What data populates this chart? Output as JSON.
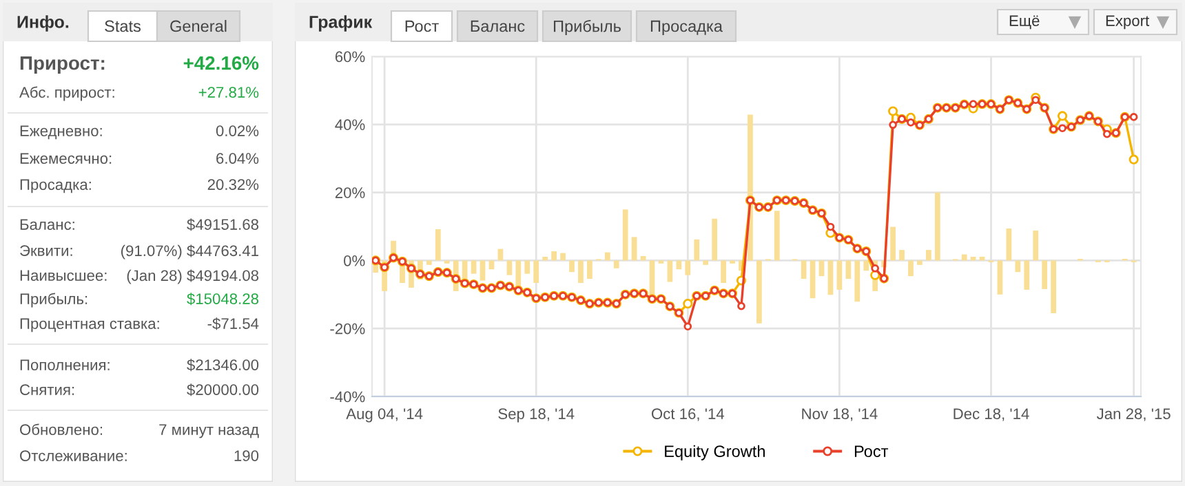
{
  "chart_data": [
    {
      "type": "other",
      "title": "Инфо.",
      "annotations": [
        "Stats",
        "General",
        "Прирост:",
        "+42.16%",
        "Абс. прирост:",
        "+27.81%",
        "Ежедневно:",
        "0.02%",
        "Ежемесячно:",
        "6.04%",
        "Просадка:",
        "20.32%",
        "Баланс:",
        "$49151.68",
        "Эквити:",
        "(91.07%) $44763.41",
        "Наивысшее:",
        "(Jan 28) $49194.08",
        "Прибыль:",
        "$15048.28",
        "Процентная ставка:",
        "-$71.54",
        "Пополнения:",
        "$21346.00",
        "Снятия:",
        "$20000.00",
        "Обновлено:",
        "7 минут назад",
        "Отслеживание:",
        "190"
      ]
    },
    {
      "type": "bar",
      "title": "График",
      "annotations": [
        "Рост",
        "Баланс",
        "Прибыль",
        "Просадка",
        "Ещё",
        "Export"
      ],
      "categories": [
        null,
        "Aug 04, '14",
        null,
        null,
        null,
        null,
        null,
        null,
        null,
        null,
        null,
        null,
        null,
        null,
        null,
        null,
        null,
        null,
        "Sep 18, '14",
        null,
        null,
        null,
        null,
        null,
        null,
        null,
        null,
        null,
        null,
        null,
        null,
        null,
        null,
        null,
        null,
        "Oct 16, '14",
        null,
        null,
        null,
        null,
        null,
        null,
        null,
        null,
        null,
        null,
        null,
        null,
        null,
        null,
        null,
        null,
        "Nov 18, '14",
        null,
        null,
        null,
        null,
        null,
        null,
        null,
        null,
        null,
        null,
        null,
        null,
        null,
        null,
        null,
        null,
        "Dec 18, '14",
        null,
        null,
        null,
        null,
        null,
        null,
        null,
        null,
        null,
        null,
        null,
        null,
        null,
        null,
        null,
        "Jan 28, '15"
      ],
      "series": [
        {
          "type": "bar",
          "color": "#f9df96",
          "values": [
            -3.6,
            -9.0,
            5.8,
            -6.6,
            -8.0,
            -5.6,
            -1.3,
            9.2,
            -0.9,
            -9.0,
            -6.3,
            -3.9,
            -5.9,
            -2.6,
            3.4,
            -4.3,
            -7.7,
            -3.9,
            -6.6,
            1.1,
            2.7,
            2.2,
            -3.4,
            -6.6,
            -5.4,
            0.4,
            2.4,
            -2.3,
            15.0,
            6.9,
            1.3,
            -11.1,
            -0.9,
            -6.3,
            -2.6,
            -4.3,
            6.2,
            -1.3,
            12.3,
            -6.6,
            -0.9,
            -3.0,
            42.9,
            -18.5,
            0.4,
            14.6,
            0,
            0.4,
            -5.4,
            -11.1,
            -4.6,
            -10.1,
            -8.6,
            -5.4,
            -12.1,
            -3.0,
            -9.0,
            -2.0,
            9.9,
            3.1,
            -4.6,
            -1.3,
            3.1,
            20.0,
            0,
            0.4,
            1.8,
            1.1,
            1.1,
            -0.5,
            -10.0,
            9.4,
            -3.4,
            -8.6,
            8.8,
            -8.4,
            -15.5,
            0,
            0,
            0.5,
            0,
            -0.5,
            -0.5,
            0,
            0.5,
            -0.5
          ]
        },
        {
          "type": "line",
          "name": "Equity Growth",
          "color": "#f5b400",
          "values": [
            0,
            -2.0,
            0.8,
            -0.3,
            -2.3,
            -4.0,
            -4.6,
            -3.4,
            -3.6,
            -5.4,
            -6.7,
            -7.0,
            -8.1,
            -8.1,
            -7.3,
            -7.7,
            -8.8,
            -9.4,
            -11.1,
            -10.8,
            -10.4,
            -10.4,
            -10.8,
            -11.7,
            -12.7,
            -12.4,
            -12.4,
            -12.7,
            -10.0,
            -9.7,
            -9.7,
            -11.3,
            -11.3,
            -13.5,
            -15.4,
            -12.7,
            -10.4,
            -10.4,
            -8.8,
            -9.7,
            -9.7,
            -5.9,
            17.7,
            15.7,
            15.7,
            17.7,
            17.7,
            17.5,
            16.9,
            14.8,
            13.9,
            8.1,
            6.7,
            6.1,
            3.5,
            2.7,
            -4.3,
            -5.3,
            43.9,
            41.6,
            42.0,
            39.8,
            41.6,
            44.9,
            44.9,
            44.9,
            45.9,
            44.7,
            46.0,
            46.0,
            44.5,
            47.2,
            46.3,
            44.5,
            47.9,
            44.9,
            38.6,
            42.5,
            39.3,
            41.3,
            42.5,
            40.9,
            38.6,
            37.5,
            42.2,
            29.7
          ]
        },
        {
          "type": "line",
          "name": "Рост",
          "color": "#e8402a",
          "values": [
            0,
            -2.0,
            0.8,
            -0.3,
            -2.3,
            -4.0,
            -4.6,
            -3.4,
            -3.6,
            -5.4,
            -6.7,
            -7.0,
            -8.1,
            -8.1,
            -7.3,
            -7.7,
            -8.8,
            -9.4,
            -11.1,
            -10.8,
            -10.4,
            -10.4,
            -10.8,
            -11.7,
            -12.7,
            -12.4,
            -12.4,
            -12.7,
            -10.0,
            -9.7,
            -9.7,
            -11.3,
            -11.3,
            -13.5,
            -15.4,
            -19.4,
            -10.4,
            -10.4,
            -8.8,
            -9.7,
            -9.7,
            -13.4,
            17.7,
            15.7,
            15.7,
            17.7,
            17.7,
            17.5,
            16.9,
            14.8,
            13.9,
            9.9,
            6.7,
            6.1,
            3.5,
            2.7,
            -2.3,
            -5.3,
            39.9,
            41.6,
            40.6,
            39.8,
            41.6,
            44.9,
            44.9,
            44.9,
            45.9,
            46.0,
            46.0,
            46.0,
            44.5,
            47.2,
            46.3,
            44.5,
            47.2,
            44.9,
            38.6,
            38.9,
            39.3,
            41.3,
            42.5,
            40.9,
            37.2,
            37.5,
            42.2,
            42.2
          ]
        }
      ],
      "ylim": [
        -40,
        60
      ],
      "yticks": [
        {
          "value": -40,
          "label": "-40%"
        },
        {
          "value": -20,
          "label": "-20%"
        },
        {
          "value": 0,
          "label": "0%"
        },
        {
          "value": 20,
          "label": "20%"
        },
        {
          "value": 40,
          "label": "40%"
        },
        {
          "value": 60,
          "label": "60%"
        }
      ],
      "grid": true,
      "legend": "bottom",
      "marker": "circle"
    }
  ]
}
